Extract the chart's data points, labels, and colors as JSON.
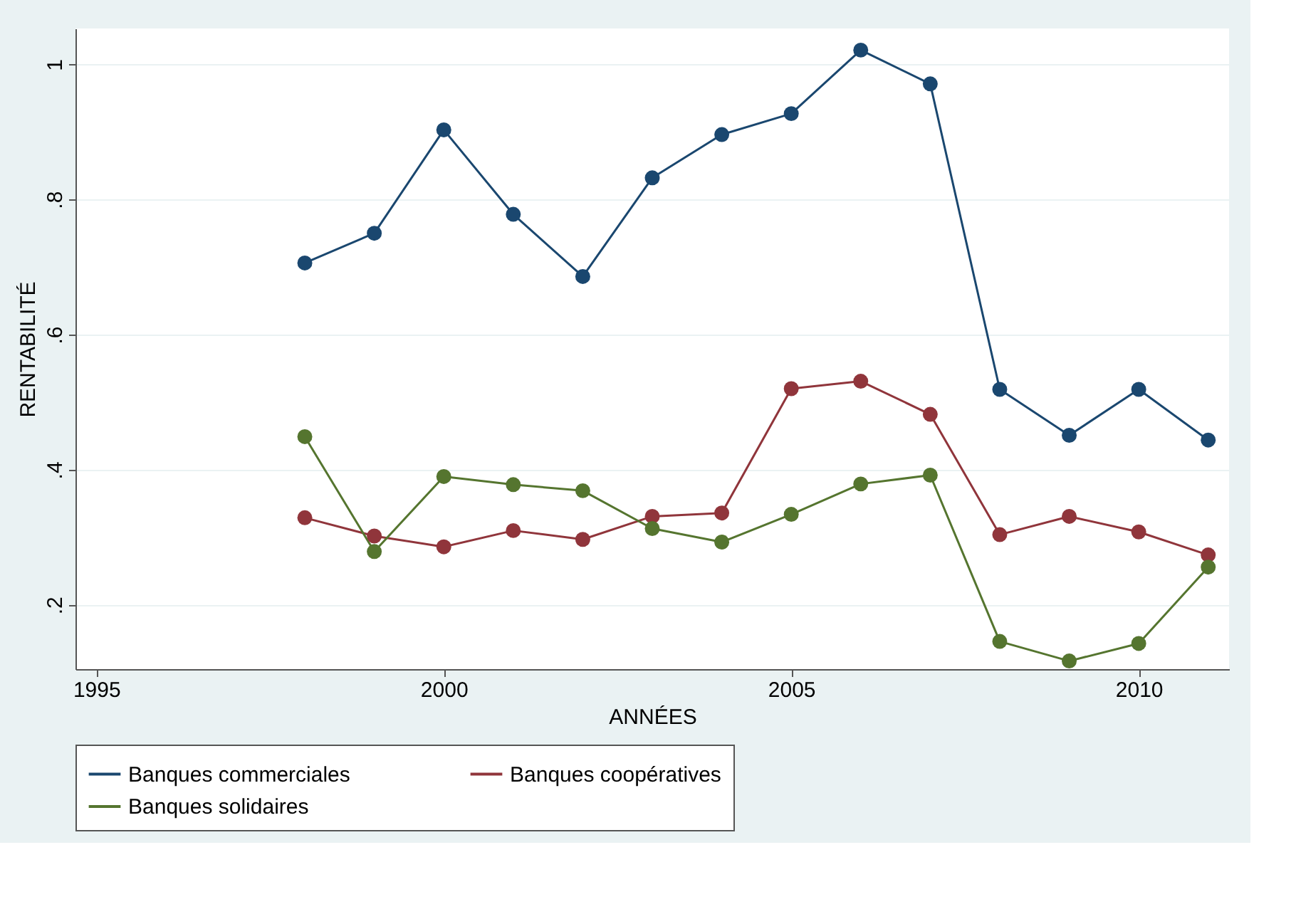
{
  "chart_data": {
    "type": "line",
    "xlabel": "ANNÉES",
    "ylabel": "RENTABILITÉ",
    "x": [
      1998,
      1999,
      2000,
      2001,
      2002,
      2003,
      2004,
      2005,
      2006,
      2007,
      2008,
      2009,
      2010,
      2011
    ],
    "series": [
      {
        "name": "Banques commerciales",
        "color": "#1a476f",
        "values": [
          0.706,
          0.75,
          0.903,
          0.778,
          0.686,
          0.832,
          0.896,
          0.927,
          1.021,
          0.971,
          0.519,
          0.451,
          0.519,
          0.444
        ]
      },
      {
        "name": "Banques coopératives",
        "color": "#90353b",
        "values": [
          0.329,
          0.302,
          0.286,
          0.31,
          0.297,
          0.331,
          0.336,
          0.52,
          0.531,
          0.482,
          0.304,
          0.331,
          0.308,
          0.274
        ]
      },
      {
        "name": "Banques solidaires",
        "color": "#55752f",
        "values": [
          0.449,
          0.279,
          0.39,
          0.378,
          0.369,
          0.313,
          0.293,
          0.334,
          0.379,
          0.392,
          0.146,
          0.117,
          0.143,
          0.256
        ]
      }
    ],
    "xlim": [
      1994.7,
      2011.3
    ],
    "xticks": [
      1995,
      2000,
      2005,
      2010
    ],
    "ylim": [
      0.105,
      1.053
    ],
    "yticks": [
      {
        "value": 0.2,
        "label": ".2"
      },
      {
        "value": 0.4,
        "label": ".4"
      },
      {
        "value": 0.6,
        "label": ".6"
      },
      {
        "value": 0.8,
        "label": ".8"
      },
      {
        "value": 1,
        "label": "1"
      }
    ],
    "grid": "y",
    "legend": "bottom",
    "marker": "circle",
    "line_style": "solid"
  }
}
